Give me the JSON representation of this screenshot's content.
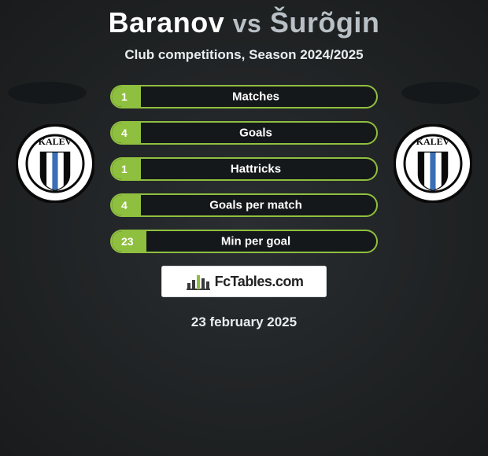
{
  "title": {
    "player1": "Baranov",
    "vs": "vs",
    "player2": "Šurõgin"
  },
  "subtitle": "Club competitions, Season 2024/2025",
  "accent_color": "#8fbf3f",
  "bar_track_color": "#15181a",
  "stats": [
    {
      "label": "Matches",
      "value": "1",
      "fill_pct": 11
    },
    {
      "label": "Goals",
      "value": "4",
      "fill_pct": 11
    },
    {
      "label": "Hattricks",
      "value": "1",
      "fill_pct": 11
    },
    {
      "label": "Goals per match",
      "value": "4",
      "fill_pct": 11
    },
    {
      "label": "Min per goal",
      "value": "23",
      "fill_pct": 13
    }
  ],
  "club_badge": {
    "name": "KALEV",
    "bg_color": "#ffffff",
    "ring_color": "#0a0a0a",
    "text_color": "#0a0a0a",
    "stripe_colors": [
      "#0a0a0a",
      "#ffffff",
      "#3a6fb5",
      "#ffffff",
      "#0a0a0a"
    ]
  },
  "brand": {
    "text": "FcTables.com",
    "bar_colors": [
      "#3a3a3a",
      "#3a3a3a",
      "#8fbf3f",
      "#3a3a3a",
      "#3a3a3a"
    ]
  },
  "date": "23 february 2025"
}
